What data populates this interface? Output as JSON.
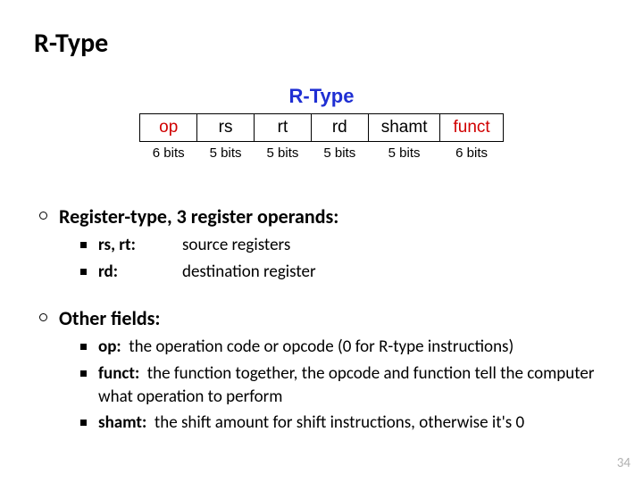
{
  "title": "R-Type",
  "diagram": {
    "title": "R-Type",
    "title_color": "#1f2fd3",
    "highlight_color": "#d00000",
    "fields": [
      {
        "name": "op",
        "bits": "6 bits",
        "highlight": true
      },
      {
        "name": "rs",
        "bits": "5 bits",
        "highlight": false
      },
      {
        "name": "rt",
        "bits": "5 bits",
        "highlight": false
      },
      {
        "name": "rd",
        "bits": "5 bits",
        "highlight": false
      },
      {
        "name": "shamt",
        "bits": "5 bits",
        "highlight": false
      },
      {
        "name": "funct",
        "bits": "6 bits",
        "highlight": true
      }
    ]
  },
  "section1": {
    "heading": "Register-type, 3 register operands:",
    "items": [
      {
        "term": "rs, rt:",
        "def": "source registers"
      },
      {
        "term": "rd:",
        "def": "destination register"
      }
    ]
  },
  "section2": {
    "heading": "Other fields:",
    "items": [
      {
        "term": "op:",
        "def": "the operation code or opcode (0 for R-type instructions)"
      },
      {
        "term": "funct:",
        "def": "the function together, the opcode and function tell the computer what operation to perform"
      },
      {
        "term": "shamt:",
        "def": "the shift amount for shift instructions, otherwise it's 0"
      }
    ]
  },
  "page_number": "34"
}
